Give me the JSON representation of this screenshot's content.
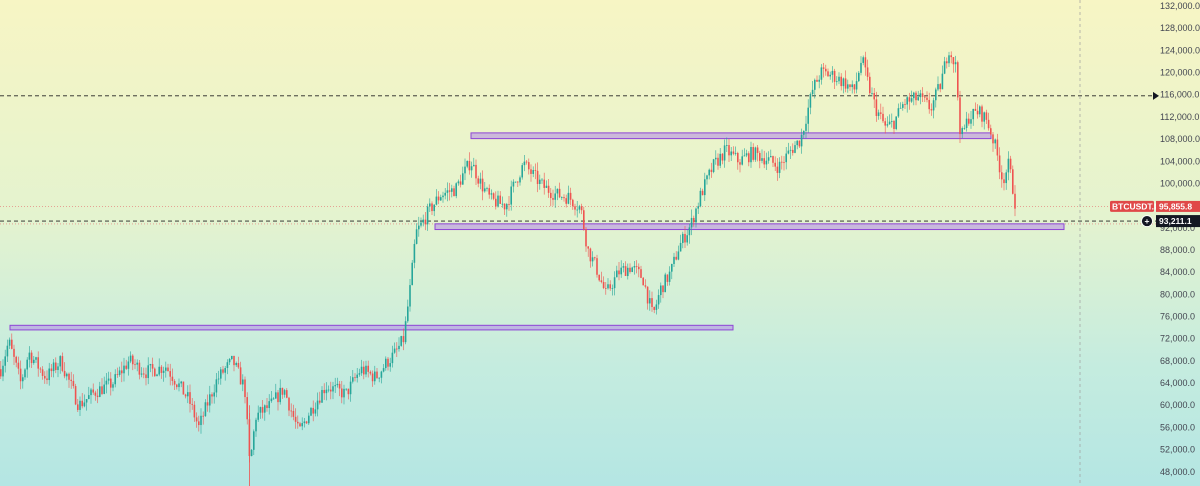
{
  "colors": {
    "up": "#26a69a",
    "down": "#ef5350",
    "zone_fill": "#b388e8",
    "zone_stroke": "#8e44d6",
    "axis_text": "#434651",
    "badge_symbol": "#e04848",
    "badge_price_bg": "#131722"
  },
  "chart_data": {
    "type": "candlestick",
    "ylim": [
      44000,
      134000
    ],
    "y_ticks": [
      "48,000.0",
      "52,000.0",
      "56,000.0",
      "60,000.0",
      "64,000.0",
      "68,000.0",
      "72,000.0",
      "76,000.0",
      "80,000.0",
      "84,000.0",
      "88,000.0",
      "92,000.0",
      "96,000.0",
      "100,000.0",
      "104,000.0",
      "108,000.0",
      "112,000.0",
      "116,000.0",
      "120,000.0",
      "124,000.0",
      "128,000.0",
      "132,000.0"
    ],
    "y_tick_values": [
      48000,
      52000,
      56000,
      60000,
      64000,
      68000,
      72000,
      76000,
      80000,
      84000,
      88000,
      92000,
      96000,
      100000,
      104000,
      108000,
      112000,
      116000,
      120000,
      124000,
      128000,
      132000
    ],
    "approx_path": [
      [
        0,
        66500
      ],
      [
        8,
        71500
      ],
      [
        20,
        64000
      ],
      [
        28,
        69500
      ],
      [
        45,
        65000
      ],
      [
        60,
        68000
      ],
      [
        78,
        60000
      ],
      [
        95,
        62500
      ],
      [
        112,
        64000
      ],
      [
        128,
        68000
      ],
      [
        145,
        66000
      ],
      [
        165,
        67000
      ],
      [
        188,
        61000
      ],
      [
        198,
        56000
      ],
      [
        206,
        60000
      ],
      [
        216,
        64500
      ],
      [
        222,
        66000
      ],
      [
        232,
        68000
      ],
      [
        244,
        63000
      ],
      [
        249,
        49000
      ],
      [
        255,
        58000
      ],
      [
        270,
        60000
      ],
      [
        283,
        63000
      ],
      [
        298,
        55000
      ],
      [
        308,
        58500
      ],
      [
        325,
        63500
      ],
      [
        345,
        62000
      ],
      [
        360,
        66500
      ],
      [
        375,
        65000
      ],
      [
        385,
        67500
      ],
      [
        395,
        69500
      ],
      [
        403,
        72000
      ],
      [
        410,
        82000
      ],
      [
        415,
        91000
      ],
      [
        422,
        93000
      ],
      [
        428,
        95000
      ],
      [
        440,
        98000
      ],
      [
        455,
        99000
      ],
      [
        462,
        101500
      ],
      [
        470,
        104000
      ],
      [
        480,
        100000
      ],
      [
        490,
        97000
      ],
      [
        505,
        96000
      ],
      [
        515,
        100500
      ],
      [
        523,
        103500
      ],
      [
        530,
        102000
      ],
      [
        542,
        99500
      ],
      [
        555,
        98000
      ],
      [
        568,
        97500
      ],
      [
        580,
        95500
      ],
      [
        587,
        88000
      ],
      [
        595,
        85000
      ],
      [
        605,
        80000
      ],
      [
        618,
        84000
      ],
      [
        630,
        85000
      ],
      [
        642,
        83000
      ],
      [
        652,
        76000
      ],
      [
        660,
        81000
      ],
      [
        670,
        84000
      ],
      [
        678,
        88500
      ],
      [
        690,
        92500
      ],
      [
        700,
        98000
      ],
      [
        712,
        103000
      ],
      [
        725,
        106000
      ],
      [
        738,
        104000
      ],
      [
        752,
        105500
      ],
      [
        765,
        104500
      ],
      [
        778,
        103000
      ],
      [
        790,
        106000
      ],
      [
        800,
        108000
      ],
      [
        812,
        117000
      ],
      [
        820,
        120000
      ],
      [
        832,
        119500
      ],
      [
        845,
        118000
      ],
      [
        853,
        116500
      ],
      [
        861,
        122500
      ],
      [
        868,
        117500
      ],
      [
        875,
        113500
      ],
      [
        885,
        110000
      ],
      [
        893,
        111000
      ],
      [
        903,
        114500
      ],
      [
        918,
        115500
      ],
      [
        930,
        113500
      ],
      [
        940,
        118000
      ],
      [
        948,
        124500
      ],
      [
        955,
        121000
      ],
      [
        960,
        108000
      ],
      [
        968,
        112000
      ],
      [
        978,
        113000
      ],
      [
        986,
        111500
      ],
      [
        994,
        107000
      ],
      [
        1002,
        100500
      ],
      [
        1008,
        103500
      ],
      [
        1015,
        95856
      ]
    ],
    "zones": [
      {
        "x0": 471,
        "x1": 991,
        "low": 108300,
        "high": 108900
      },
      {
        "x0": 435,
        "x1": 1064,
        "low": 91900,
        "high": 92500
      },
      {
        "x0": 10,
        "x1": 733,
        "low": 73800,
        "high": 74200
      }
    ],
    "reference_lines": [
      {
        "price": 115800,
        "style": "dashed"
      },
      {
        "price": 93211.1,
        "style": "dashed"
      },
      {
        "price": 95855.8,
        "style": "dotted-red"
      },
      {
        "price": 92700,
        "style": "dotted-red"
      }
    ],
    "vertical_line_x": 1080,
    "current_price": {
      "symbol": "BTCUSDT.P",
      "last": "95,855.8",
      "crosshair": "93,211.1",
      "last_value": 95855.8,
      "crosshair_value": 93211.1
    }
  }
}
